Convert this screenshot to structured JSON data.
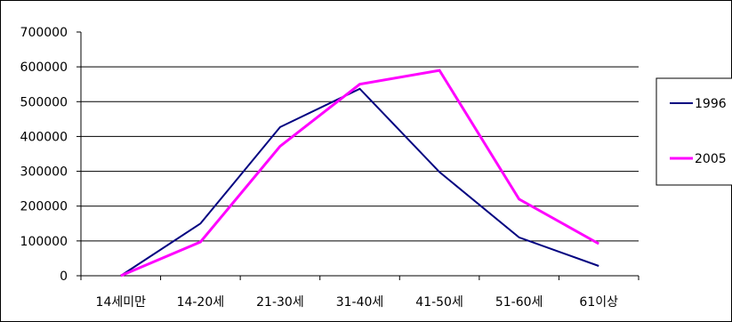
{
  "chart_data": {
    "type": "line",
    "categories": [
      "14세미만",
      "14-20세",
      "21-30세",
      "31-40세",
      "41-50세",
      "51-60세",
      "61이상"
    ],
    "series": [
      {
        "name": "1996",
        "color": "#000080",
        "values": [
          0,
          150000,
          427000,
          537000,
          298000,
          110000,
          28000
        ]
      },
      {
        "name": "2005",
        "color": "#ff00ff",
        "values": [
          0,
          97000,
          372000,
          550000,
          590000,
          220000,
          92000
        ]
      }
    ],
    "ylim": [
      0,
      700000
    ],
    "yticks": [
      "0",
      "100000",
      "200000",
      "300000",
      "400000",
      "500000",
      "600000",
      "700000"
    ],
    "grid": true,
    "legend_position": "right"
  }
}
